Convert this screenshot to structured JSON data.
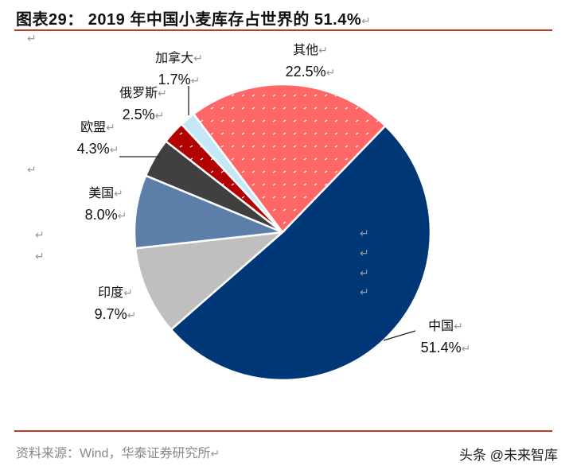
{
  "title": "图表29： 2019 年中国小麦库存占世界的 51.4%",
  "source": "资料来源：Wind，华泰证券研究所",
  "watermark": "头条 @未来智库",
  "chart_data": {
    "type": "pie",
    "title": "2019 年中国小麦库存占世界的 51.4%",
    "start_angle_deg": 44,
    "direction": "clockwise",
    "slices": [
      {
        "name": "中国",
        "value": 51.4,
        "label": "51.4%",
        "color": "#003776"
      },
      {
        "name": "印度",
        "value": 9.7,
        "label": "9.7%",
        "color": "#bfbfbf"
      },
      {
        "name": "美国",
        "value": 8.0,
        "label": "8.0%",
        "color": "#5b7fa8"
      },
      {
        "name": "欧盟",
        "value": 4.3,
        "label": "4.3%",
        "color": "#404040"
      },
      {
        "name": "俄罗斯",
        "value": 2.5,
        "label": "2.5%",
        "color": "#b30000"
      },
      {
        "name": "加拿大",
        "value": 1.7,
        "label": "1.7%",
        "color": "#c5e8f7"
      },
      {
        "name": "其他",
        "value": 22.5,
        "label": "22.5%",
        "color": "#ff6666"
      }
    ]
  }
}
